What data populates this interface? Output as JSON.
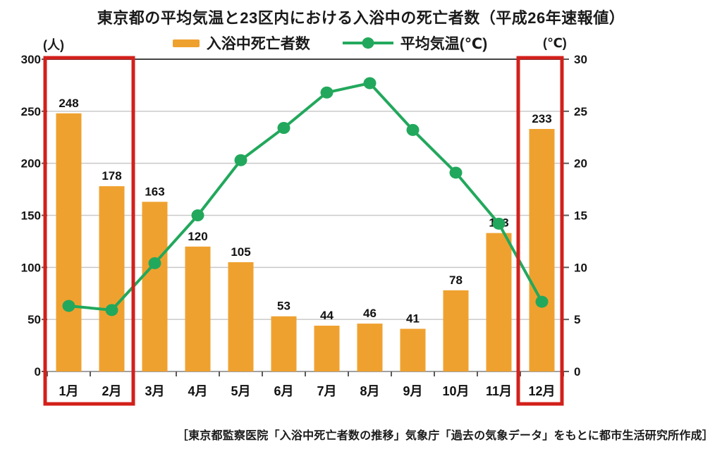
{
  "title": "東京都の平均気温と23区内における入浴中の死亡者数（平成26年速報値）",
  "legend": {
    "bar_label": "入浴中死亡者数",
    "line_label": "平均気温(℃)"
  },
  "left_axis": {
    "unit": "(人)",
    "ticks": [
      0,
      50,
      100,
      150,
      200,
      250,
      300
    ]
  },
  "right_axis": {
    "unit": "(℃)",
    "ticks": [
      0,
      5,
      10,
      15,
      20,
      25,
      30
    ]
  },
  "footer": "［東京都監察医院「入浴中死亡者数の推移」気象庁「過去の気象データ」をもとに都市生活研究所作成］",
  "colors": {
    "bar": "#EFA12F",
    "line": "#22A85C",
    "highlight": "#D3201B",
    "grid": "#c9c9c9",
    "top_border": "#454545",
    "baseline": "#a0a0a0",
    "tick": "#5a5a5a"
  },
  "chart_data": {
    "type": "bar",
    "subtype": "bar-line-combo",
    "title": "東京都の平均気温と23区内における入浴中の死亡者数（平成26年速報値）",
    "categories": [
      "1月",
      "2月",
      "3月",
      "4月",
      "5月",
      "6月",
      "7月",
      "8月",
      "9月",
      "10月",
      "11月",
      "12月"
    ],
    "series": [
      {
        "name": "入浴中死亡者数",
        "type": "bar",
        "axis": "left",
        "color": "#EFA12F",
        "values": [
          248,
          178,
          163,
          120,
          105,
          53,
          44,
          46,
          41,
          78,
          133,
          233
        ]
      },
      {
        "name": "平均気温(℃)",
        "type": "line",
        "axis": "right",
        "color": "#22A85C",
        "values": [
          6.3,
          5.9,
          10.4,
          15.0,
          20.3,
          23.4,
          26.8,
          27.7,
          23.2,
          19.1,
          14.2,
          6.7
        ]
      }
    ],
    "left_ylim": [
      0,
      300
    ],
    "right_ylim": [
      0,
      30
    ],
    "left_unit": "(人)",
    "right_unit": "(℃)",
    "grid": "horizontal",
    "legend_position": "top",
    "highlights": [
      {
        "from": "1月",
        "to": "2月"
      },
      {
        "from": "12月",
        "to": "12月"
      }
    ]
  }
}
